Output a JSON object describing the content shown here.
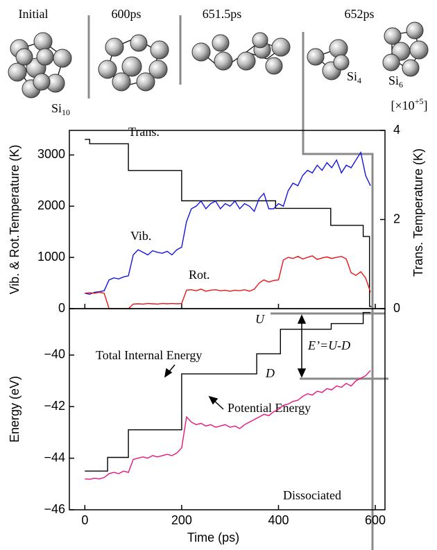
{
  "header": {
    "snapshots": [
      "Initial",
      "600ps",
      "651.5ps",
      "652ps"
    ],
    "clusters": [
      {
        "base": "Si",
        "sub": "10"
      },
      {
        "base": "Si",
        "sub": "4"
      },
      {
        "base": "Si",
        "sub": "6"
      }
    ]
  },
  "chart_data": [
    {
      "type": "line",
      "ylabel": "Vib. & Rot.Temperature (K)",
      "y2label": "Trans. Temperature (K)",
      "y2_scale_label": {
        "pre": "[×10",
        "sup": "+5",
        "post": "]"
      },
      "xlim": [
        -32,
        620
      ],
      "xticks": [
        0,
        200,
        400,
        600
      ],
      "ylim": [
        0,
        3480
      ],
      "yticks": [
        0,
        1000,
        2000,
        3000
      ],
      "y2lim": [
        0,
        4
      ],
      "y2ticks": [
        0,
        2,
        4
      ],
      "x": [
        0,
        10,
        20,
        30,
        40,
        50,
        60,
        70,
        80,
        90,
        100,
        110,
        120,
        130,
        140,
        150,
        160,
        170,
        180,
        190,
        200,
        210,
        220,
        230,
        240,
        250,
        260,
        270,
        280,
        290,
        300,
        310,
        320,
        330,
        340,
        350,
        360,
        370,
        380,
        390,
        400,
        410,
        420,
        430,
        440,
        450,
        460,
        470,
        480,
        490,
        500,
        510,
        520,
        530,
        540,
        550,
        560,
        570,
        580,
        590
      ],
      "series": [
        {
          "name": "Trans.",
          "color": "#000000",
          "axis": "y2",
          "x": [
            0,
            10,
            10,
            90,
            90,
            200,
            200,
            394,
            394,
            508,
            508,
            575,
            575,
            588,
            588,
            592
          ],
          "values": [
            3.8,
            3.8,
            3.7,
            3.7,
            3.1,
            3.1,
            2.42,
            2.42,
            2.25,
            2.25,
            1.87,
            1.87,
            1.62,
            1.62,
            0.05,
            0.05
          ]
        },
        {
          "name": "Vib.",
          "color": "#1414e0",
          "values": [
            300,
            280,
            320,
            330,
            350,
            560,
            600,
            580,
            620,
            640,
            1050,
            1150,
            1100,
            1050,
            1130,
            1100,
            1080,
            1120,
            1050,
            1150,
            1200,
            1700,
            1950,
            2000,
            2100,
            1950,
            2050,
            2100,
            1950,
            2050,
            2000,
            2100,
            1950,
            2050,
            2000,
            1900,
            2150,
            2250,
            1950,
            1950,
            2050,
            2000,
            2300,
            2450,
            2400,
            2600,
            2700,
            2650,
            2800,
            2700,
            2850,
            2750,
            2900,
            2650,
            2800,
            2750,
            2900,
            3050,
            2600,
            2400
          ]
        },
        {
          "name": "Rot.",
          "color": "#e81414",
          "values": [
            300,
            310,
            300,
            320,
            300,
            0,
            0,
            0,
            0,
            0,
            90,
            95,
            90,
            100,
            95,
            90,
            100,
            95,
            100,
            95,
            100,
            360,
            370,
            350,
            380,
            340,
            360,
            370,
            350,
            360,
            340,
            360,
            350,
            370,
            340,
            380,
            500,
            560,
            520,
            550,
            560,
            950,
            1000,
            980,
            1020,
            970,
            1000,
            1030,
            960,
            990,
            1010,
            980,
            1000,
            1020,
            970,
            700,
            650,
            720,
            600,
            320
          ]
        }
      ]
    },
    {
      "type": "line",
      "xlabel": "Time (ps)",
      "ylabel": "Energy (eV)",
      "xlim": [
        -32,
        620
      ],
      "xticks": [
        0,
        200,
        400,
        600
      ],
      "ylim": [
        -46,
        -38.2
      ],
      "yticks": [
        {
          "value": -46,
          "label": "−46"
        },
        {
          "value": -44,
          "label": "−44"
        },
        {
          "value": -42,
          "label": "−42"
        },
        {
          "value": -40,
          "label": "−40"
        }
      ],
      "x": [
        0,
        10,
        20,
        30,
        40,
        50,
        60,
        70,
        80,
        90,
        100,
        110,
        120,
        130,
        140,
        150,
        160,
        170,
        180,
        190,
        200,
        210,
        220,
        230,
        240,
        250,
        260,
        270,
        280,
        290,
        300,
        310,
        320,
        330,
        340,
        350,
        360,
        370,
        380,
        390,
        400,
        410,
        420,
        430,
        440,
        450,
        460,
        470,
        480,
        490,
        500,
        510,
        520,
        530,
        540,
        550,
        560,
        570,
        580,
        590
      ],
      "annotations": [
        "U",
        "D",
        "E’=U-D",
        "Dissociated"
      ],
      "series": [
        {
          "name": "Total Internal Energy",
          "color": "#000000",
          "x": [
            0,
            47,
            47,
            90,
            90,
            200,
            200,
            355,
            355,
            404,
            404,
            509,
            509,
            575,
            575,
            590
          ],
          "values": [
            -44.5,
            -44.5,
            -43.97,
            -43.97,
            -42.9,
            -42.9,
            -40.73,
            -40.73,
            -39.95,
            -39.95,
            -39.0,
            -39.0,
            -38.78,
            -38.78,
            -38.35,
            -38.35
          ]
        },
        {
          "name": "Potential Energy",
          "color": "#e6147a",
          "values": [
            -44.8,
            -44.82,
            -44.78,
            -44.8,
            -44.75,
            -44.6,
            -44.55,
            -44.6,
            -44.5,
            -44.55,
            -44.05,
            -44.0,
            -43.95,
            -44.0,
            -43.9,
            -43.95,
            -43.9,
            -43.85,
            -43.9,
            -43.8,
            -43.6,
            -42.4,
            -42.6,
            -42.7,
            -42.65,
            -42.75,
            -42.7,
            -42.8,
            -42.75,
            -42.7,
            -42.8,
            -42.75,
            -42.85,
            -42.7,
            -42.6,
            -42.5,
            -42.4,
            -42.3,
            -42.35,
            -42.2,
            -42.1,
            -41.95,
            -41.9,
            -41.8,
            -41.75,
            -41.6,
            -41.5,
            -41.55,
            -41.4,
            -41.45,
            -41.3,
            -41.35,
            -41.2,
            -41.25,
            -41.1,
            -41.2,
            -41.0,
            -40.9,
            -40.8,
            -40.6
          ]
        }
      ]
    }
  ]
}
